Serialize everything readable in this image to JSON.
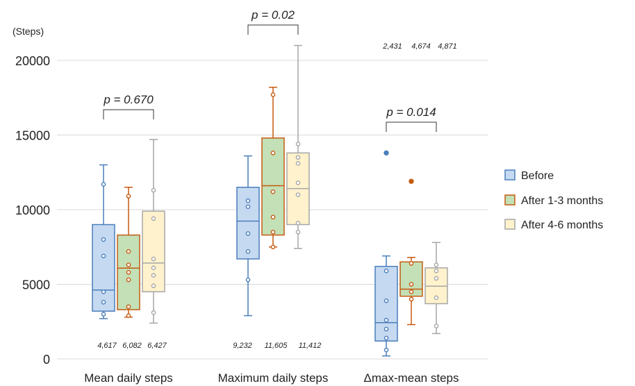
{
  "chart_data": {
    "type": "box",
    "ylabel": "(Steps)",
    "ylim": [
      0,
      22000
    ],
    "yticks": [
      "0",
      "5000",
      "10000",
      "15000",
      "20000"
    ],
    "ytick_values": [
      0,
      5000,
      10000,
      15000,
      20000
    ],
    "grid": true,
    "legend_position": "right",
    "series": [
      {
        "name": "Before",
        "fill": "#c5d9f1",
        "stroke": "#4a7ebb"
      },
      {
        "name": "After 1-3 months",
        "fill": "#c3e0b6",
        "stroke": "#c55a11"
      },
      {
        "name": "After 4-6 months",
        "fill": "#fff2cc",
        "stroke": "#a6a6a6"
      }
    ],
    "groups": [
      {
        "category": "Mean daily steps",
        "p_value": "p = 0.670",
        "value_labels": [
          "4,617",
          "6,082",
          "6,427"
        ],
        "boxes": [
          {
            "whisker_low": 2700,
            "q1": 3200,
            "median": 4617,
            "q3": 9000,
            "whisker_high": 13000,
            "points": [
              11700,
              8000,
              6900,
              4500,
              3800,
              3000
            ],
            "outliers": []
          },
          {
            "whisker_low": 2800,
            "q1": 3300,
            "median": 6082,
            "q3": 8300,
            "whisker_high": 11500,
            "points": [
              10900,
              7200,
              6300,
              5800,
              5300,
              3500,
              2900
            ],
            "outliers": []
          },
          {
            "whisker_low": 2400,
            "q1": 4500,
            "median": 6427,
            "q3": 9900,
            "whisker_high": 14700,
            "points": [
              11300,
              9400,
              6700,
              6100,
              5600,
              4900,
              3100
            ],
            "outliers": []
          }
        ]
      },
      {
        "category": "Maximum daily steps",
        "p_value": "p = 0.02",
        "value_labels": [
          "9,232",
          "11,605",
          "11,412"
        ],
        "boxes": [
          {
            "whisker_low": 2900,
            "q1": 6700,
            "median": 9232,
            "q3": 11500,
            "whisker_high": 13600,
            "points": [
              10600,
              10200,
              8400,
              7200,
              5300
            ],
            "outliers": []
          },
          {
            "whisker_low": 7500,
            "q1": 8300,
            "median": 11605,
            "q3": 14800,
            "whisker_high": 18200,
            "points": [
              17700,
              13800,
              11200,
              9500,
              8500,
              7500
            ],
            "outliers": []
          },
          {
            "whisker_low": 7400,
            "q1": 9000,
            "median": 11412,
            "q3": 13800,
            "whisker_high": 21000,
            "points": [
              14400,
              13500,
              13100,
              11800,
              11000,
              9100,
              8500
            ],
            "outliers": []
          }
        ]
      },
      {
        "category": "Δmax-mean steps",
        "p_value": "p = 0.014",
        "value_labels": [
          "2,431",
          "4,674",
          "4,871"
        ],
        "boxes": [
          {
            "whisker_low": 200,
            "q1": 1200,
            "median": 2431,
            "q3": 6200,
            "whisker_high": 6900,
            "points": [
              5900,
              3900,
              2600,
              2000,
              1400,
              600
            ],
            "outliers": [
              13800
            ]
          },
          {
            "whisker_low": 2300,
            "q1": 4200,
            "median": 4674,
            "q3": 6500,
            "whisker_high": 6800,
            "points": [
              6400,
              5000,
              4500,
              4000
            ],
            "outliers": [
              11900
            ]
          },
          {
            "whisker_low": 1700,
            "q1": 3700,
            "median": 4871,
            "q3": 6100,
            "whisker_high": 7800,
            "points": [
              6300,
              5900,
              5400,
              4100,
              2200
            ],
            "outliers": []
          }
        ]
      }
    ]
  }
}
